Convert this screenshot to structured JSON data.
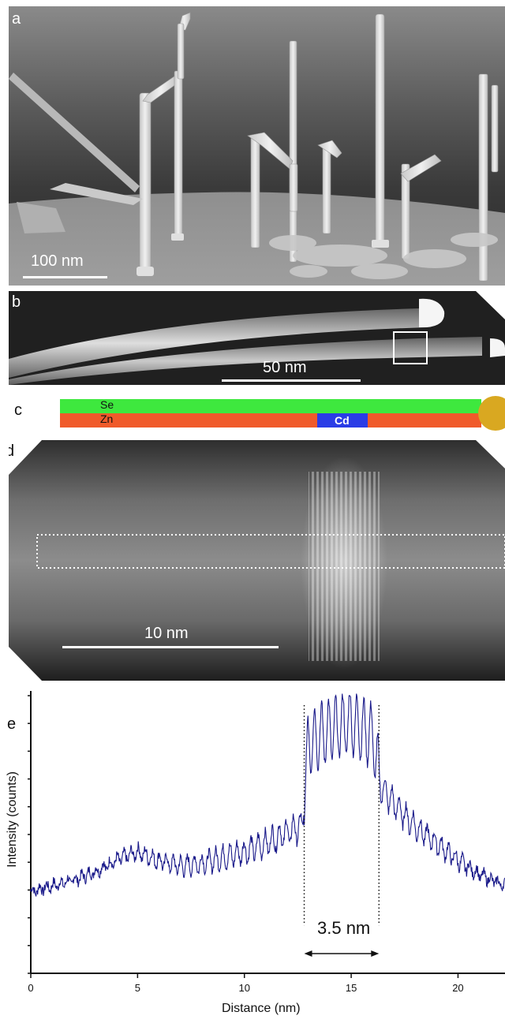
{
  "panel_a": {
    "label": "a",
    "scale_label": "100 nm"
  },
  "panel_b": {
    "label": "b",
    "scale_label": "50 nm"
  },
  "panel_c": {
    "label": "c",
    "layer_top": "Se",
    "layer_bottom": "Zn",
    "segment": "Cd",
    "colors": {
      "se": "#3ee83e",
      "zn": "#f05a2a",
      "cd": "#2a3ce6",
      "tip": "#d9a821"
    }
  },
  "panel_d": {
    "label": "d",
    "scale_label": "10 nm"
  },
  "panel_e": {
    "label": "e",
    "width_label": "3.5 nm"
  },
  "chart_data": {
    "type": "line",
    "title": "",
    "xlabel": "Distance (nm)",
    "ylabel": "Intensity (counts)",
    "xlim": [
      0,
      22.2
    ],
    "xticks": [
      "0",
      "5",
      "10",
      "15",
      "20"
    ],
    "xtick_values": [
      0,
      5,
      10,
      15,
      20
    ],
    "yticks_unlabeled": 11,
    "grid": false,
    "series": [
      {
        "line_color": "#1a1a8a",
        "description_points": [
          {
            "x": 0.0,
            "y": 0.29
          },
          {
            "x": 1.0,
            "y": 0.31
          },
          {
            "x": 2.0,
            "y": 0.33
          },
          {
            "x": 3.0,
            "y": 0.36
          },
          {
            "x": 4.0,
            "y": 0.4
          },
          {
            "x": 5.0,
            "y": 0.43
          },
          {
            "x": 6.0,
            "y": 0.4
          },
          {
            "x": 7.0,
            "y": 0.38
          },
          {
            "x": 8.0,
            "y": 0.39
          },
          {
            "x": 9.0,
            "y": 0.41
          },
          {
            "x": 10.0,
            "y": 0.43
          },
          {
            "x": 11.0,
            "y": 0.46
          },
          {
            "x": 12.0,
            "y": 0.5
          },
          {
            "x": 12.7,
            "y": 0.52
          },
          {
            "x": 13.0,
            "y": 0.82
          },
          {
            "x": 14.0,
            "y": 0.86
          },
          {
            "x": 15.0,
            "y": 0.89
          },
          {
            "x": 16.0,
            "y": 0.84
          },
          {
            "x": 16.4,
            "y": 0.66
          },
          {
            "x": 17.0,
            "y": 0.6
          },
          {
            "x": 18.0,
            "y": 0.52
          },
          {
            "x": 19.0,
            "y": 0.46
          },
          {
            "x": 20.0,
            "y": 0.4
          },
          {
            "x": 21.0,
            "y": 0.35
          },
          {
            "x": 22.2,
            "y": 0.31
          }
        ]
      }
    ],
    "annotations": [
      {
        "type": "vline",
        "x": 12.8
      },
      {
        "type": "vline",
        "x": 16.3
      },
      {
        "type": "arrow",
        "x_from": 12.8,
        "x_to": 16.3,
        "text": "3.5 nm"
      }
    ]
  }
}
